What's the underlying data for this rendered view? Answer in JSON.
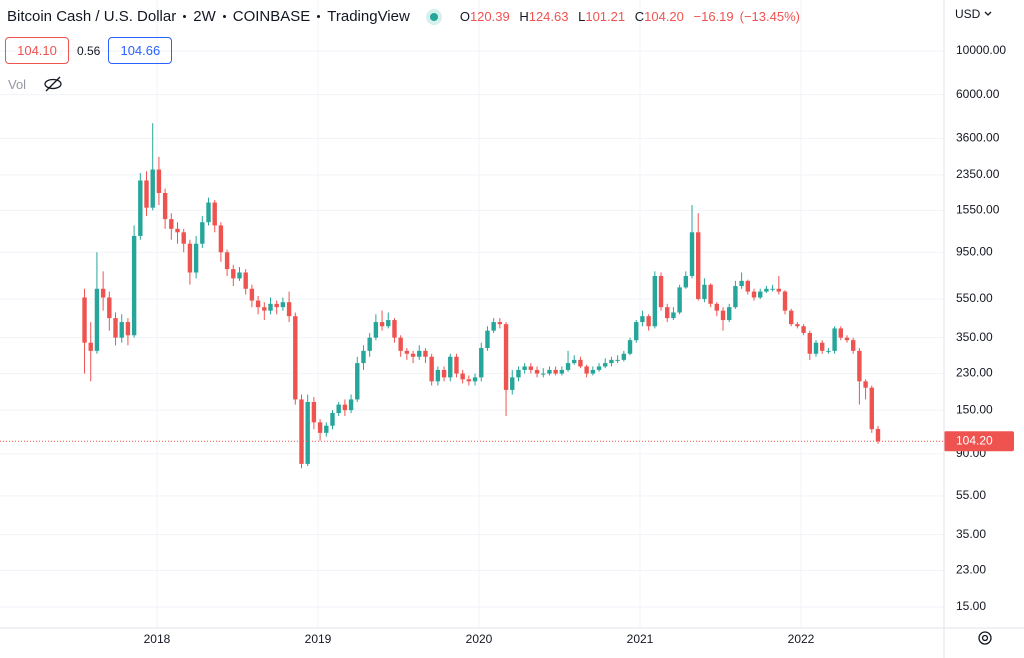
{
  "header": {
    "symbol": "Bitcoin Cash / U.S. Dollar",
    "interval": "2W",
    "exchange": "COINBASE",
    "source": "TradingView",
    "ohlc": {
      "o_label": "O",
      "o": "120.39",
      "h_label": "H",
      "h": "124.63",
      "l_label": "L",
      "l": "101.21",
      "c_label": "C",
      "c": "104.20",
      "change": "−16.19",
      "change_pct": "(−13.45%)"
    },
    "sell": "104.10",
    "spread": "0.56",
    "buy": "104.66",
    "volume": "Vol",
    "currency": "USD"
  },
  "chart_data": {
    "type": "candlestick",
    "log_y": true,
    "grid": true,
    "up_color": "#26a69a",
    "down_color": "#ef5350",
    "x": [
      2017.55,
      2017.5885,
      2017.627,
      2017.6655,
      2017.704,
      2017.7425,
      2017.781,
      2017.8195,
      2017.858,
      2017.8965,
      2017.935,
      2017.9735,
      2018.012,
      2018.0505,
      2018.089,
      2018.1275,
      2018.166,
      2018.2045,
      2018.243,
      2018.2815,
      2018.32,
      2018.3585,
      2018.397,
      2018.4355,
      2018.474,
      2018.5125,
      2018.551,
      2018.5895,
      2018.628,
      2018.6665,
      2018.705,
      2018.7435,
      2018.782,
      2018.8205,
      2018.859,
      2018.8975,
      2018.936,
      2018.9745,
      2019.013,
      2019.0515,
      2019.09,
      2019.1285,
      2019.167,
      2019.2055,
      2019.244,
      2019.2825,
      2019.321,
      2019.3595,
      2019.398,
      2019.4365,
      2019.475,
      2019.5135,
      2019.552,
      2019.5905,
      2019.629,
      2019.6675,
      2019.706,
      2019.7445,
      2019.783,
      2019.8215,
      2019.86,
      2019.8985,
      2019.937,
      2019.9755,
      2020.014,
      2020.0525,
      2020.091,
      2020.1295,
      2020.168,
      2020.2065,
      2020.245,
      2020.2835,
      2020.322,
      2020.3605,
      2020.399,
      2020.4375,
      2020.476,
      2020.5145,
      2020.553,
      2020.5915,
      2020.63,
      2020.6685,
      2020.707,
      2020.7455,
      2020.784,
      2020.8225,
      2020.861,
      2020.8995,
      2020.938,
      2020.9765,
      2021.015,
      2021.0535,
      2021.092,
      2021.1305,
      2021.169,
      2021.2075,
      2021.246,
      2021.2845,
      2021.323,
      2021.3615,
      2021.4,
      2021.4385,
      2021.477,
      2021.5155,
      2021.554,
      2021.5925,
      2021.631,
      2021.6695,
      2021.708,
      2021.7465,
      2021.785,
      2021.8235,
      2021.862,
      2021.9005,
      2021.939,
      2021.9775,
      2022.016,
      2022.0545,
      2022.093,
      2022.1315,
      2022.17,
      2022.2085,
      2022.247,
      2022.2855,
      2022.324,
      2022.3625,
      2022.401,
      2022.4395,
      2022.478
    ],
    "open": [
      560,
      330,
      300,
      620,
      560,
      440,
      350,
      420,
      360,
      1150,
      2200,
      1600,
      2500,
      1900,
      1400,
      1250,
      1200,
      1050,
      750,
      1050,
      1350,
      1700,
      1300,
      950,
      780,
      700,
      750,
      620,
      540,
      500,
      480,
      520,
      500,
      530,
      450,
      170,
      80,
      165,
      130,
      115,
      125,
      145,
      160,
      150,
      170,
      260,
      300,
      350,
      420,
      400,
      430,
      350,
      300,
      290,
      280,
      300,
      280,
      210,
      240,
      220,
      280,
      230,
      215,
      210,
      220,
      310,
      380,
      420,
      410,
      190,
      220,
      240,
      250,
      240,
      230,
      230,
      240,
      230,
      240,
      260,
      270,
      250,
      230,
      240,
      250,
      260,
      270,
      270,
      290,
      340,
      420,
      450,
      400,
      720,
      500,
      440,
      470,
      630,
      720,
      1200,
      550,
      650,
      520,
      480,
      430,
      500,
      640,
      680,
      600,
      560,
      600,
      620,
      620,
      600,
      480,
      410,
      400,
      370,
      290,
      330,
      300,
      300,
      390,
      350,
      340,
      300,
      210,
      195,
      120.39
    ],
    "high": [
      620,
      420,
      950,
      760,
      600,
      470,
      460,
      440,
      1300,
      2400,
      2450,
      4300,
      2900,
      2000,
      1500,
      1350,
      1250,
      1100,
      1150,
      1450,
      1800,
      1750,
      1350,
      980,
      820,
      800,
      780,
      650,
      570,
      530,
      560,
      540,
      560,
      600,
      470,
      180,
      180,
      175,
      135,
      130,
      150,
      165,
      170,
      180,
      280,
      320,
      370,
      460,
      480,
      470,
      440,
      360,
      310,
      300,
      320,
      310,
      290,
      250,
      250,
      290,
      290,
      240,
      225,
      230,
      330,
      400,
      440,
      440,
      420,
      240,
      250,
      260,
      260,
      250,
      245,
      250,
      250,
      250,
      300,
      285,
      280,
      255,
      250,
      260,
      275,
      280,
      285,
      300,
      350,
      430,
      480,
      460,
      760,
      750,
      520,
      500,
      650,
      760,
      1650,
      1500,
      700,
      660,
      530,
      500,
      520,
      680,
      750,
      690,
      620,
      620,
      640,
      650,
      720,
      610,
      490,
      420,
      410,
      380,
      340,
      340,
      310,
      400,
      400,
      360,
      350,
      310,
      215,
      200,
      124.63
    ],
    "low": [
      230,
      210,
      290,
      480,
      380,
      320,
      330,
      320,
      350,
      1100,
      1450,
      1550,
      1650,
      1250,
      1100,
      1050,
      950,
      650,
      700,
      1000,
      1300,
      1200,
      850,
      720,
      640,
      680,
      580,
      500,
      460,
      430,
      460,
      460,
      480,
      420,
      160,
      76,
      78,
      120,
      105,
      110,
      120,
      140,
      140,
      145,
      165,
      240,
      280,
      340,
      380,
      390,
      330,
      280,
      270,
      260,
      270,
      260,
      200,
      200,
      210,
      210,
      220,
      205,
      200,
      200,
      210,
      300,
      370,
      390,
      140,
      180,
      210,
      230,
      230,
      220,
      220,
      225,
      225,
      225,
      235,
      255,
      245,
      220,
      225,
      235,
      245,
      250,
      260,
      265,
      285,
      330,
      400,
      380,
      390,
      480,
      420,
      430,
      460,
      620,
      700,
      540,
      530,
      500,
      450,
      380,
      420,
      490,
      620,
      580,
      540,
      550,
      590,
      600,
      580,
      460,
      400,
      390,
      360,
      270,
      280,
      290,
      290,
      290,
      340,
      330,
      290,
      160,
      170,
      115,
      101.21
    ],
    "close": [
      330,
      300,
      620,
      560,
      440,
      350,
      420,
      360,
      1150,
      2200,
      1600,
      2500,
      1900,
      1400,
      1250,
      1200,
      1050,
      750,
      1050,
      1350,
      1700,
      1300,
      950,
      780,
      700,
      750,
      620,
      540,
      500,
      480,
      520,
      500,
      530,
      450,
      170,
      80,
      165,
      130,
      115,
      125,
      145,
      160,
      150,
      170,
      260,
      300,
      350,
      420,
      400,
      430,
      350,
      300,
      290,
      280,
      300,
      280,
      210,
      240,
      220,
      280,
      230,
      215,
      210,
      220,
      310,
      380,
      420,
      410,
      190,
      220,
      240,
      250,
      240,
      230,
      230,
      240,
      230,
      240,
      260,
      270,
      250,
      230,
      240,
      250,
      260,
      270,
      270,
      290,
      340,
      420,
      450,
      400,
      720,
      500,
      440,
      470,
      630,
      720,
      1200,
      550,
      650,
      520,
      480,
      430,
      500,
      640,
      680,
      600,
      560,
      600,
      620,
      620,
      600,
      480,
      410,
      400,
      370,
      290,
      330,
      300,
      300,
      390,
      350,
      340,
      300,
      210,
      195,
      120,
      104.2
    ],
    "xlim": [
      2017.025,
      2022.888
    ],
    "xticks": [
      2018,
      2019,
      2020,
      2021,
      2022
    ],
    "ylim": [
      11.74,
      18150
    ],
    "yticks": [
      {
        "value": 10000,
        "label": "10000.00"
      },
      {
        "value": 6000,
        "label": "6000.00"
      },
      {
        "value": 3600,
        "label": "3600.00"
      },
      {
        "value": 2350,
        "label": "2350.00"
      },
      {
        "value": 1550,
        "label": "1550.00"
      },
      {
        "value": 950,
        "label": "950.00"
      },
      {
        "value": 550,
        "label": "550.00"
      },
      {
        "value": 350,
        "label": "350.00"
      },
      {
        "value": 230,
        "label": "230.00"
      },
      {
        "value": 150,
        "label": "150.00"
      },
      {
        "value": 90,
        "label": "90.00"
      },
      {
        "value": 55,
        "label": "55.00"
      },
      {
        "value": 35,
        "label": "35.00"
      },
      {
        "value": 23,
        "label": "23.00"
      },
      {
        "value": 15,
        "label": "15.00"
      }
    ],
    "last_price": {
      "value": 104.2,
      "label": "104.20"
    }
  }
}
